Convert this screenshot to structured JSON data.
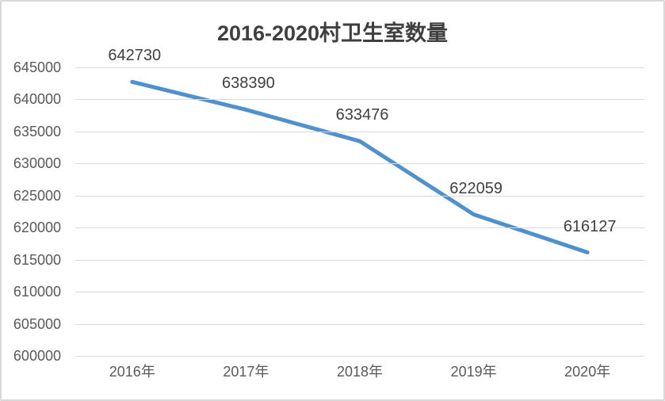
{
  "chart_data": {
    "type": "line",
    "title": "2016-2020村卫生室数量",
    "categories": [
      "2016年",
      "2017年",
      "2018年",
      "2019年",
      "2020年"
    ],
    "series": [
      {
        "name": "村卫生室数量",
        "values": [
          642730,
          638390,
          633476,
          622059,
          616127
        ]
      }
    ],
    "data_labels": [
      "642730",
      "638390",
      "633476",
      "622059",
      "616127"
    ],
    "xlabel": "",
    "ylabel": "",
    "ylim": [
      600000,
      645000
    ],
    "ytick_step": 5000,
    "yticks": [
      "645000",
      "640000",
      "635000",
      "630000",
      "625000",
      "620000",
      "615000",
      "610000",
      "605000",
      "600000"
    ],
    "grid": true,
    "legend_position": "none",
    "colors": {
      "line": "#5091CD",
      "grid": "#D9D9D9",
      "axis_text": "#595959",
      "data_label_text": "#404040",
      "title_text": "#3F3F3F",
      "border": "#D9D9D9",
      "background": "#FFFFFF"
    }
  }
}
